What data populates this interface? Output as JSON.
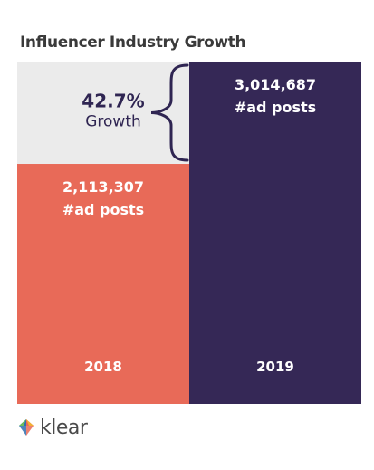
{
  "header": {
    "title": "Influencer Industry Growth"
  },
  "chart_data": {
    "type": "bar",
    "categories": [
      "2018",
      "2019"
    ],
    "values": [
      2113307,
      3014687
    ],
    "value_labels": [
      "2,113,307",
      "3,014,687"
    ],
    "unit_label": "#ad posts",
    "colors": [
      "#e86a58",
      "#352856"
    ],
    "background_color": "#ebebeb",
    "annotation": {
      "value": "42.7%",
      "label": "Growth",
      "color": "#2f2552"
    },
    "grid": false
  },
  "brand": {
    "name": "klear"
  }
}
